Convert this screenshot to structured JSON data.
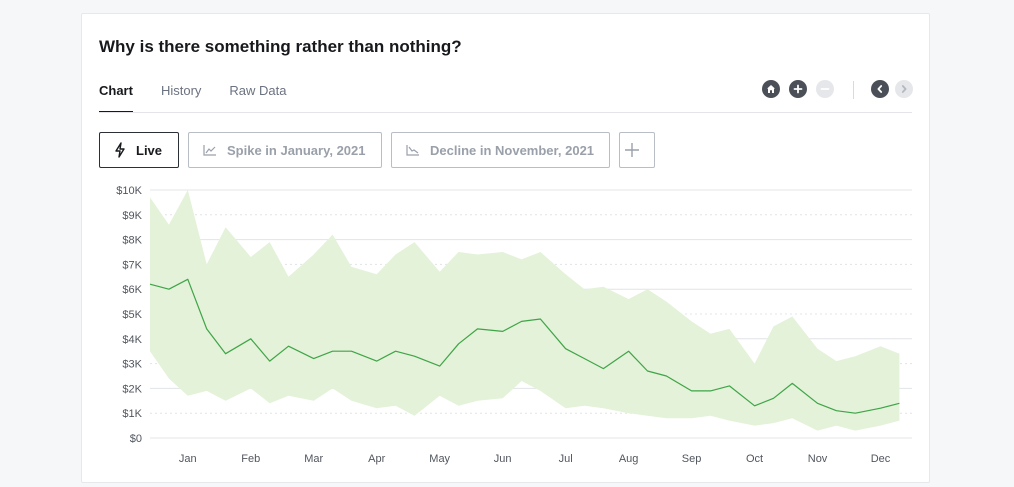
{
  "card": {
    "title": "Why is there something rather than nothing?"
  },
  "tabs": [
    {
      "label": "Chart",
      "active": true
    },
    {
      "label": "History",
      "active": false
    },
    {
      "label": "Raw Data",
      "active": false
    }
  ],
  "controls": {
    "icons": [
      "home-icon",
      "plus-circle-icon",
      "minus-circle-icon",
      "chevron-left-icon",
      "chevron-right-icon"
    ],
    "zoom_out_enabled": false,
    "next_enabled": false
  },
  "scenarios": {
    "live_label": "Live",
    "items": [
      {
        "label": "Spike in January, 2021",
        "icon": "trend-line-icon"
      },
      {
        "label": "Decline in November, 2021",
        "icon": "trend-line-icon"
      }
    ],
    "add_icon": "plus-icon"
  },
  "colors": {
    "line": "#3fa448",
    "band": "#e3f2d8",
    "gridline": "#e1e4e8",
    "text": "#17191c",
    "muted": "#9aa0aa"
  },
  "chart_data": {
    "type": "area",
    "title": "",
    "xlabel": "",
    "ylabel": "",
    "y_tick_labels": [
      "$0",
      "$1K",
      "$2K",
      "$3K",
      "$4K",
      "$5K",
      "$6K",
      "$7K",
      "$8K",
      "$9K",
      "$10K"
    ],
    "y_ticks": [
      0,
      1000,
      2000,
      3000,
      4000,
      5000,
      6000,
      7000,
      8000,
      9000,
      10000
    ],
    "ylim": [
      0,
      10000
    ],
    "x_tick_labels": [
      "Jan",
      "Feb",
      "Mar",
      "Apr",
      "May",
      "Jun",
      "Jul",
      "Aug",
      "Sep",
      "Oct",
      "Nov",
      "Dec"
    ],
    "grid": true,
    "legend": "none",
    "series": [
      {
        "kind": "line",
        "x": [
          -0.6,
          -0.3,
          0.0,
          0.3,
          0.6,
          1.0,
          1.3,
          1.6,
          2.0,
          2.3,
          2.6,
          3.0,
          3.3,
          3.6,
          4.0,
          4.3,
          4.6,
          5.0,
          5.3,
          5.6,
          6.0,
          6.3,
          6.6,
          7.0,
          7.3,
          7.6,
          8.0,
          8.3,
          8.6,
          9.0,
          9.3,
          9.6,
          10.0,
          10.3,
          10.6,
          11.0,
          11.3
        ],
        "y": [
          6200,
          6000,
          6400,
          4400,
          3400,
          4000,
          3100,
          3700,
          3200,
          3500,
          3500,
          3100,
          3500,
          3300,
          2900,
          3800,
          4400,
          4300,
          4700,
          4800,
          3600,
          3200,
          2800,
          3500,
          2700,
          2500,
          1900,
          1900,
          2100,
          1300,
          1600,
          2200,
          1400,
          1100,
          1000,
          1200,
          1400
        ]
      },
      {
        "kind": "band",
        "x": [
          -0.6,
          -0.3,
          0.0,
          0.3,
          0.6,
          1.0,
          1.3,
          1.6,
          2.0,
          2.3,
          2.6,
          3.0,
          3.3,
          3.6,
          4.0,
          4.3,
          4.6,
          5.0,
          5.3,
          5.6,
          6.0,
          6.3,
          6.6,
          7.0,
          7.3,
          7.6,
          8.0,
          8.3,
          8.6,
          9.0,
          9.3,
          9.6,
          10.0,
          10.3,
          10.6,
          11.0,
          11.3
        ],
        "upper": [
          9700,
          8600,
          10000,
          7000,
          8500,
          7300,
          7900,
          6500,
          7400,
          8200,
          6900,
          6600,
          7400,
          7900,
          6700,
          7500,
          7400,
          7500,
          7200,
          7500,
          6600,
          6000,
          6100,
          5600,
          6000,
          5500,
          4700,
          4200,
          4400,
          3000,
          4500,
          4900,
          3600,
          3100,
          3300,
          3700,
          3400
        ],
        "lower": [
          3500,
          2400,
          1700,
          1900,
          1500,
          2000,
          1400,
          1700,
          1500,
          2000,
          1500,
          1200,
          1300,
          900,
          1700,
          1300,
          1500,
          1600,
          2300,
          1900,
          1200,
          1300,
          1200,
          1000,
          900,
          800,
          800,
          900,
          700,
          500,
          600,
          800,
          300,
          500,
          300,
          500,
          700
        ]
      }
    ]
  }
}
